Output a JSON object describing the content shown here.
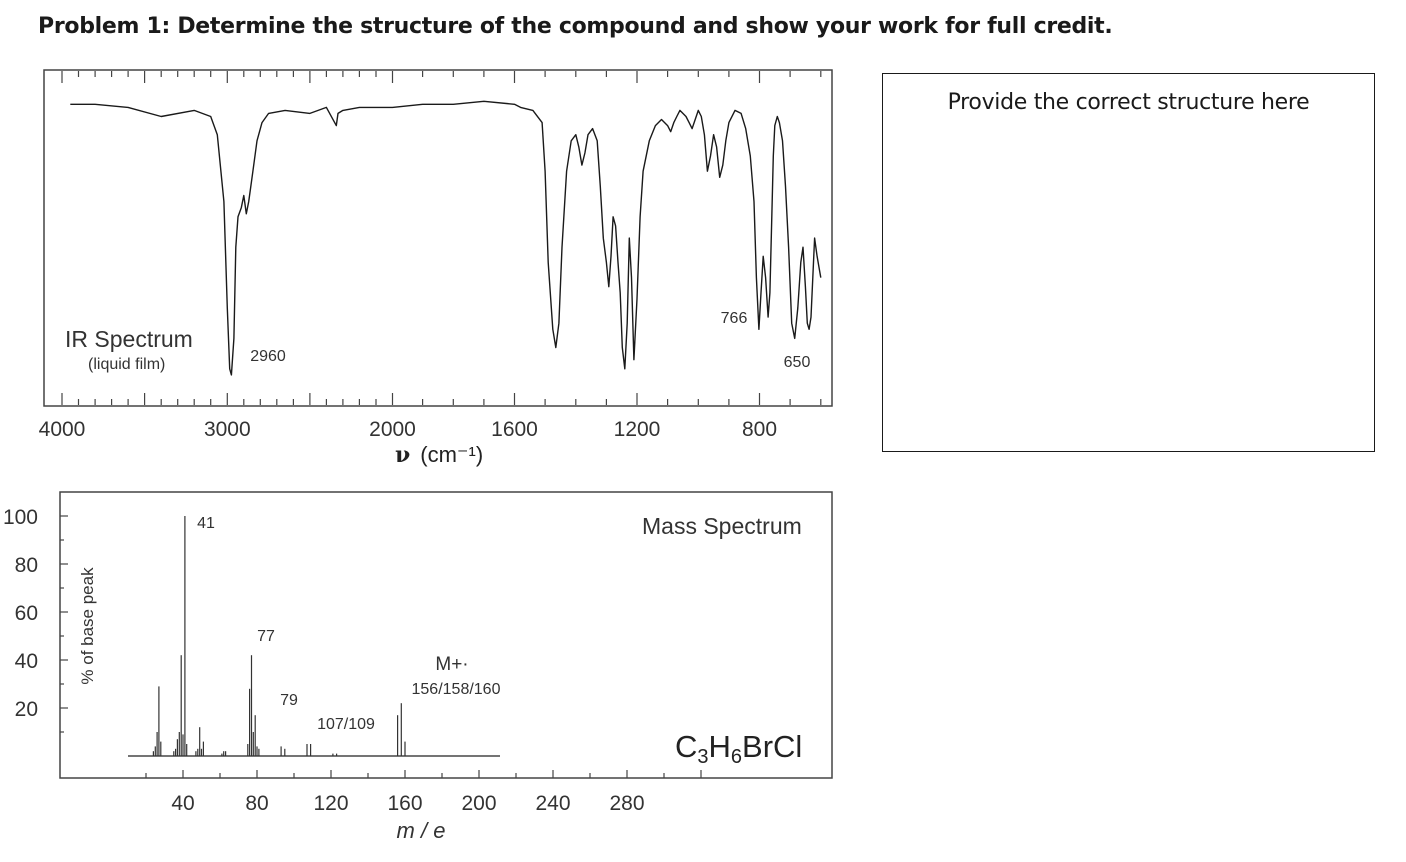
{
  "page": {
    "title": "Problem 1: Determine the structure of the compound and show your work for full credit.",
    "answer_label": "Provide the correct structure here"
  },
  "chart_data": [
    {
      "type": "line",
      "title": "IR Spectrum",
      "subtitle": "(liquid film)",
      "xlabel": "ν (cm⁻¹)",
      "xlabel_symbol": "ν",
      "xlabel_unit": "(cm⁻¹)",
      "axis": "wavenumber, split scale (4000–2000 and 2000–600)",
      "xlim": [
        4000,
        600
      ],
      "x_ticks": [
        4000,
        3000,
        2000,
        1600,
        1200,
        800
      ],
      "ylabel": "",
      "grid": false,
      "annotations": [
        {
          "x": 2960,
          "text": "2960"
        },
        {
          "x": 766,
          "text": "766"
        },
        {
          "x": 650,
          "text": "650"
        }
      ],
      "series": [
        {
          "x": [
            3950,
            3800,
            3600,
            3400,
            3200,
            3100,
            3060,
            3020,
            3000,
            2985,
            2975,
            2960,
            2948,
            2935,
            2915,
            2900,
            2885,
            2870,
            2860,
            2845,
            2820,
            2790,
            2750,
            2650,
            2500,
            2400,
            2340,
            2330,
            2300,
            2200,
            2100,
            2000,
            1900,
            1800,
            1700,
            1600,
            1580,
            1540,
            1510,
            1500,
            1490,
            1475,
            1465,
            1455,
            1445,
            1430,
            1415,
            1400,
            1390,
            1380,
            1370,
            1360,
            1345,
            1330,
            1320,
            1310,
            1300,
            1292,
            1285,
            1278,
            1270,
            1262,
            1255,
            1248,
            1240,
            1232,
            1225,
            1218,
            1210,
            1200,
            1190,
            1180,
            1160,
            1140,
            1120,
            1100,
            1090,
            1080,
            1070,
            1060,
            1050,
            1040,
            1030,
            1020,
            1010,
            1000,
            990,
            980,
            970,
            960,
            950,
            940,
            930,
            920,
            910,
            900,
            880,
            860,
            845,
            830,
            818,
            810,
            802,
            795,
            788,
            780,
            772,
            766,
            760,
            755,
            750,
            742,
            735,
            725,
            715,
            705,
            695,
            685,
            675,
            665,
            658,
            650,
            644,
            638,
            632,
            626,
            620,
            612,
            605,
            600
          ],
          "y": [
            92,
            92,
            91,
            88,
            90,
            88,
            82,
            60,
            25,
            5,
            3,
            15,
            45,
            55,
            58,
            62,
            56,
            60,
            64,
            70,
            80,
            86,
            89,
            90,
            89,
            91,
            85,
            89,
            90,
            91,
            91,
            91,
            92,
            92,
            93,
            92,
            91,
            90,
            86,
            70,
            40,
            18,
            12,
            20,
            45,
            70,
            80,
            82,
            78,
            72,
            76,
            82,
            84,
            80,
            65,
            48,
            40,
            32,
            42,
            55,
            52,
            40,
            30,
            12,
            5,
            20,
            48,
            35,
            8,
            28,
            55,
            70,
            80,
            85,
            87,
            85,
            83,
            86,
            88,
            90,
            89,
            88,
            86,
            84,
            87,
            90,
            88,
            82,
            70,
            75,
            82,
            78,
            68,
            72,
            80,
            86,
            90,
            89,
            84,
            75,
            60,
            35,
            18,
            30,
            42,
            35,
            22,
            30,
            55,
            75,
            85,
            88,
            86,
            80,
            65,
            45,
            20,
            15,
            25,
            40,
            45,
            32,
            20,
            18,
            22,
            35,
            48,
            42,
            38,
            35
          ]
        }
      ]
    },
    {
      "type": "bar",
      "title": "Mass Spectrum",
      "formula": "C₃H₆BrCl",
      "formula_parts": {
        "c": "C",
        "c_sub": "3",
        "h": "H",
        "h_sub": "6",
        "rest": "BrCl"
      },
      "xlabel": "m / e",
      "ylabel": "% of base peak",
      "xlim": [
        0,
        320
      ],
      "ylim": [
        0,
        100
      ],
      "x_ticks": [
        40,
        80,
        120,
        160,
        200,
        240,
        280
      ],
      "y_ticks": [
        20,
        40,
        60,
        80,
        100
      ],
      "grid": false,
      "annotations": [
        {
          "x": 41,
          "text": "41"
        },
        {
          "x": 77,
          "text": "77"
        },
        {
          "x": 79,
          "text": "79"
        },
        {
          "x": 108,
          "text": "107/109"
        },
        {
          "x": 158,
          "text": "M+·"
        },
        {
          "x": 158,
          "text": "156/158/160"
        }
      ],
      "peaks": [
        {
          "mz": 24,
          "intensity": 2
        },
        {
          "mz": 25,
          "intensity": 4
        },
        {
          "mz": 26,
          "intensity": 10
        },
        {
          "mz": 27,
          "intensity": 29
        },
        {
          "mz": 28,
          "intensity": 6
        },
        {
          "mz": 35,
          "intensity": 2
        },
        {
          "mz": 36,
          "intensity": 3
        },
        {
          "mz": 37,
          "intensity": 7
        },
        {
          "mz": 38,
          "intensity": 10
        },
        {
          "mz": 39,
          "intensity": 42
        },
        {
          "mz": 40,
          "intensity": 9
        },
        {
          "mz": 41,
          "intensity": 100
        },
        {
          "mz": 42,
          "intensity": 5
        },
        {
          "mz": 47,
          "intensity": 2
        },
        {
          "mz": 48,
          "intensity": 3
        },
        {
          "mz": 49,
          "intensity": 12
        },
        {
          "mz": 50,
          "intensity": 3
        },
        {
          "mz": 51,
          "intensity": 6
        },
        {
          "mz": 61,
          "intensity": 1
        },
        {
          "mz": 62,
          "intensity": 2
        },
        {
          "mz": 63,
          "intensity": 2
        },
        {
          "mz": 75,
          "intensity": 5
        },
        {
          "mz": 76,
          "intensity": 28
        },
        {
          "mz": 77,
          "intensity": 42
        },
        {
          "mz": 78,
          "intensity": 10
        },
        {
          "mz": 79,
          "intensity": 17
        },
        {
          "mz": 80,
          "intensity": 4
        },
        {
          "mz": 81,
          "intensity": 3
        },
        {
          "mz": 93,
          "intensity": 4
        },
        {
          "mz": 95,
          "intensity": 3
        },
        {
          "mz": 107,
          "intensity": 5
        },
        {
          "mz": 109,
          "intensity": 5
        },
        {
          "mz": 121,
          "intensity": 1
        },
        {
          "mz": 123,
          "intensity": 1
        },
        {
          "mz": 156,
          "intensity": 17
        },
        {
          "mz": 158,
          "intensity": 22
        },
        {
          "mz": 160,
          "intensity": 6
        }
      ]
    }
  ]
}
